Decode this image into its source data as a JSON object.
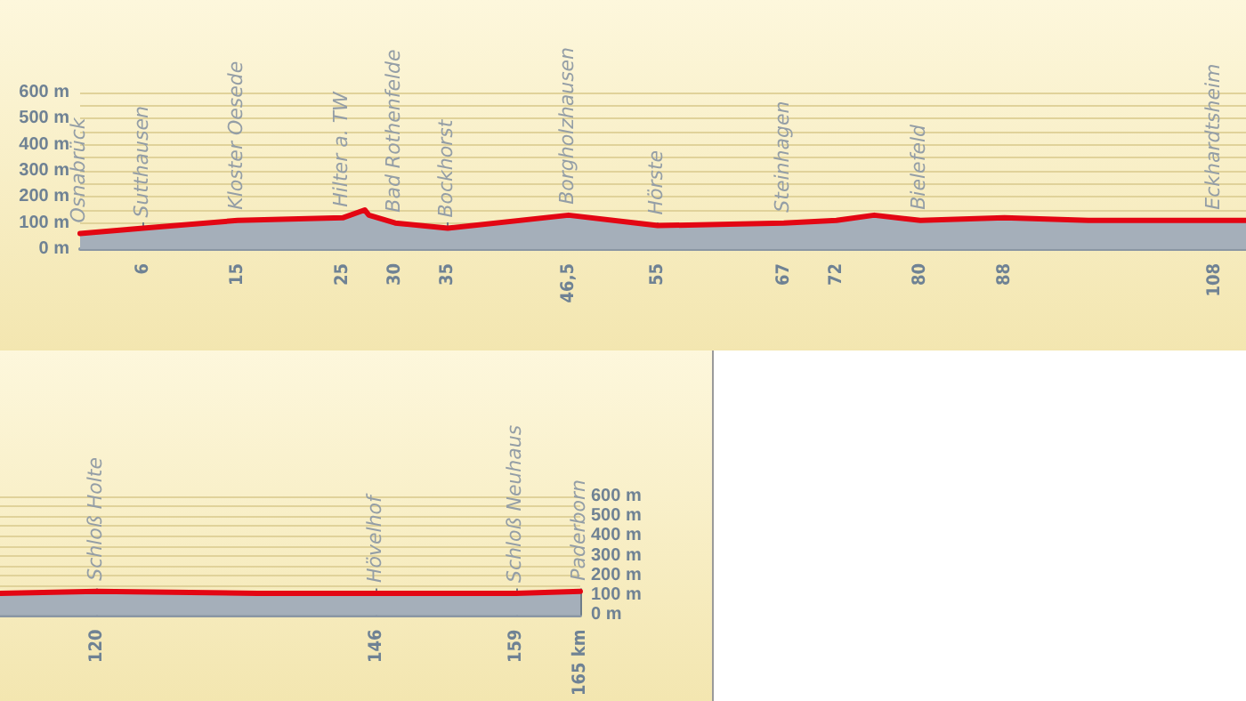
{
  "chart_data": [
    {
      "type": "area",
      "x": [
        0,
        6,
        15,
        25,
        27.1,
        27.5,
        30,
        35,
        46.5,
        55,
        67,
        72,
        75.6,
        80,
        88,
        96,
        108,
        111
      ],
      "series": [
        {
          "color": "#e30613",
          "values": [
            60,
            80,
            110,
            120,
            150,
            130,
            100,
            80,
            130,
            90,
            100,
            110,
            130,
            110,
            120,
            110,
            110,
            110
          ]
        }
      ],
      "xlim": [
        0,
        111
      ],
      "ylim": [
        0,
        600
      ],
      "xticks": [
        6,
        15,
        25,
        30,
        35,
        {
          "value": 46.5,
          "label": "46,5"
        },
        55,
        67,
        72,
        80,
        88,
        108
      ],
      "yticks": [
        {
          "value": 0,
          "label": "0 m"
        },
        {
          "value": 100,
          "label": "100 m"
        },
        {
          "value": 150,
          "label": null
        },
        {
          "value": 200,
          "label": "200 m"
        },
        {
          "value": 250,
          "label": null
        },
        {
          "value": 300,
          "label": "300 m"
        },
        {
          "value": 350,
          "label": null
        },
        {
          "value": 400,
          "label": "400 m"
        },
        {
          "value": 450,
          "label": null
        },
        {
          "value": 500,
          "label": "500 m"
        },
        {
          "value": 550,
          "label": null
        },
        {
          "value": 600,
          "label": "600 m"
        }
      ],
      "grid": "y",
      "marker": "none",
      "line_style": "solid",
      "annotations": [
        {
          "text": "Osnabrück",
          "x": 0,
          "y": 60
        },
        {
          "text": "Sutthausen",
          "x": 6,
          "y": 80
        },
        {
          "text": "Kloster Oesede",
          "x": 15,
          "y": 110
        },
        {
          "text": "Hilter a. TW",
          "x": 25,
          "y": 120
        },
        {
          "text": "Bad Rothenfelde",
          "x": 30,
          "y": 100
        },
        {
          "text": "Bockhorst",
          "x": 35,
          "y": 80
        },
        {
          "text": "Borgholzhausen",
          "x": 46.5,
          "y": 130
        },
        {
          "text": "Hörste",
          "x": 55,
          "y": 90
        },
        {
          "text": "Steinhagen",
          "x": 67,
          "y": 100
        },
        {
          "text": "Bielefeld",
          "x": 80,
          "y": 110
        },
        {
          "text": "Eckhardtsheim",
          "x": 108,
          "y": 110
        }
      ]
    },
    {
      "type": "area",
      "x": [
        111,
        120,
        135,
        146,
        159,
        165
      ],
      "series": [
        {
          "color": "#e30613",
          "values": [
            110,
            120,
            110,
            110,
            110,
            120
          ]
        }
      ],
      "xlim": [
        111,
        165
      ],
      "ylim": [
        0,
        600
      ],
      "xticks": [
        120,
        146,
        159,
        {
          "value": 165,
          "label": "165 km"
        }
      ],
      "yticks": [
        {
          "value": 0,
          "label": "0 m"
        },
        {
          "value": 100,
          "label": "100 m"
        },
        {
          "value": 150,
          "label": null
        },
        {
          "value": 200,
          "label": "200 m"
        },
        {
          "value": 250,
          "label": null
        },
        {
          "value": 300,
          "label": "300 m"
        },
        {
          "value": 350,
          "label": null
        },
        {
          "value": 400,
          "label": "400 m"
        },
        {
          "value": 450,
          "label": null
        },
        {
          "value": 500,
          "label": "500 m"
        },
        {
          "value": 550,
          "label": null
        },
        {
          "value": 600,
          "label": "600 m"
        }
      ],
      "grid": "y",
      "marker": "none",
      "line_style": "solid",
      "annotations": [
        {
          "text": "Schloß Holte",
          "x": 120,
          "y": 120
        },
        {
          "text": "Hövelhof",
          "x": 146,
          "y": 110
        },
        {
          "text": "Schloß Neuhaus",
          "x": 159,
          "y": 110
        },
        {
          "text": "Paderborn",
          "x": 165,
          "y": 120
        }
      ]
    }
  ]
}
